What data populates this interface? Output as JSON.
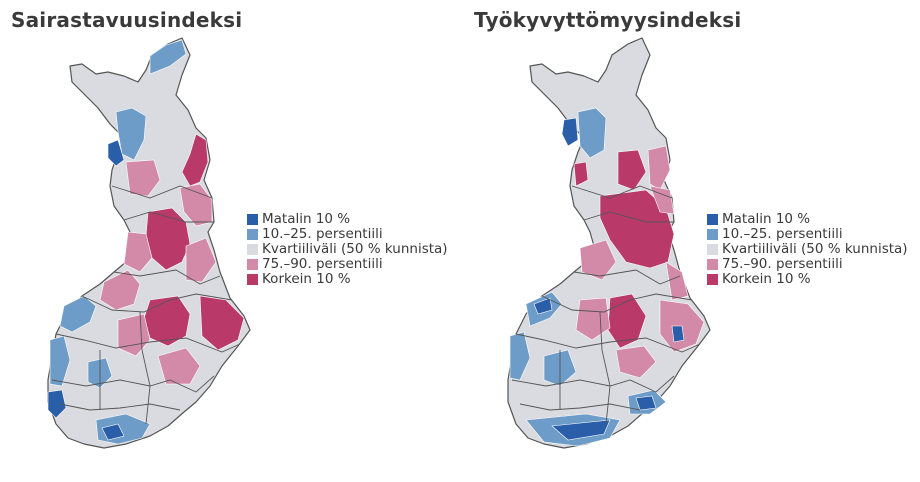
{
  "maps": [
    {
      "title": "Sairastavuusindeksi"
    },
    {
      "title": "Työkyvyttömyysindeksi"
    }
  ],
  "legend": [
    {
      "label": "Matalin 10 %",
      "color": "#2a5ea9"
    },
    {
      "label": "10.–25. persentiili",
      "color": "#6e9cc8"
    },
    {
      "label": "Kvartiiliväli (50 % kunnista)",
      "color": "#d9dbe0"
    },
    {
      "label": "75.–90. persentiili",
      "color": "#d38aa9"
    },
    {
      "label": "Korkein 10 %",
      "color": "#b93a69"
    }
  ]
}
